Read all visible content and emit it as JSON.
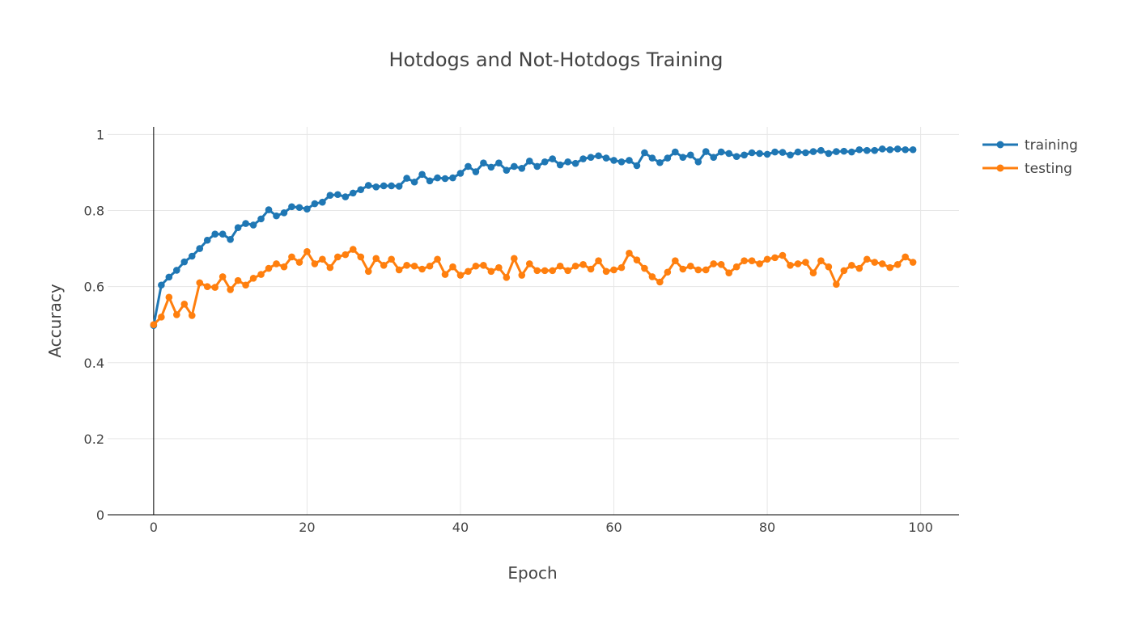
{
  "chart_data": {
    "type": "line",
    "title": "Hotdogs and Not-Hotdogs Training",
    "xlabel": "Epoch",
    "ylabel": "Accuracy",
    "xlim": [
      -6,
      105
    ],
    "ylim": [
      0,
      1.02
    ],
    "x_ticks": [
      0,
      20,
      40,
      60,
      80,
      100
    ],
    "y_ticks": [
      0,
      0.2,
      0.4,
      0.6,
      0.8,
      1
    ],
    "x_tick_labels": [
      "0",
      "20",
      "40",
      "60",
      "80",
      "100"
    ],
    "y_tick_labels": [
      "0",
      "0.2",
      "0.4",
      "0.6",
      "0.8",
      "1"
    ],
    "grid": true,
    "legend_position": "top-right",
    "x": [
      0,
      1,
      2,
      3,
      4,
      5,
      6,
      7,
      8,
      9,
      10,
      11,
      12,
      13,
      14,
      15,
      16,
      17,
      18,
      19,
      20,
      21,
      22,
      23,
      24,
      25,
      26,
      27,
      28,
      29,
      30,
      31,
      32,
      33,
      34,
      35,
      36,
      37,
      38,
      39,
      40,
      41,
      42,
      43,
      44,
      45,
      46,
      47,
      48,
      49,
      50,
      51,
      52,
      53,
      54,
      55,
      56,
      57,
      58,
      59,
      60,
      61,
      62,
      63,
      64,
      65,
      66,
      67,
      68,
      69,
      70,
      71,
      72,
      73,
      74,
      75,
      76,
      77,
      78,
      79,
      80,
      81,
      82,
      83,
      84,
      85,
      86,
      87,
      88,
      89,
      90,
      91,
      92,
      93,
      94,
      95,
      96,
      97,
      98,
      99
    ],
    "series": [
      {
        "name": "training",
        "color": "#1f77b4",
        "values": [
          0.498,
          0.604,
          0.625,
          0.643,
          0.665,
          0.68,
          0.7,
          0.722,
          0.738,
          0.738,
          0.724,
          0.755,
          0.766,
          0.762,
          0.778,
          0.802,
          0.786,
          0.794,
          0.81,
          0.808,
          0.804,
          0.818,
          0.822,
          0.84,
          0.842,
          0.836,
          0.846,
          0.855,
          0.866,
          0.862,
          0.865,
          0.865,
          0.864,
          0.885,
          0.875,
          0.895,
          0.878,
          0.886,
          0.884,
          0.886,
          0.898,
          0.916,
          0.902,
          0.925,
          0.914,
          0.925,
          0.906,
          0.916,
          0.911,
          0.93,
          0.916,
          0.928,
          0.936,
          0.92,
          0.928,
          0.924,
          0.936,
          0.94,
          0.944,
          0.938,
          0.932,
          0.928,
          0.932,
          0.918,
          0.952,
          0.938,
          0.926,
          0.938,
          0.954,
          0.94,
          0.946,
          0.928,
          0.955,
          0.94,
          0.954,
          0.95,
          0.942,
          0.946,
          0.952,
          0.95,
          0.948,
          0.954,
          0.953,
          0.946,
          0.954,
          0.952,
          0.955,
          0.958,
          0.95,
          0.955,
          0.956,
          0.954,
          0.96,
          0.958,
          0.958,
          0.962,
          0.96,
          0.962,
          0.96,
          0.96
        ]
      },
      {
        "name": "testing",
        "color": "#ff7f0e",
        "values": [
          0.5,
          0.52,
          0.572,
          0.526,
          0.554,
          0.524,
          0.61,
          0.6,
          0.598,
          0.626,
          0.592,
          0.616,
          0.604,
          0.622,
          0.632,
          0.648,
          0.66,
          0.652,
          0.678,
          0.664,
          0.692,
          0.66,
          0.672,
          0.65,
          0.678,
          0.684,
          0.698,
          0.678,
          0.64,
          0.674,
          0.656,
          0.672,
          0.644,
          0.656,
          0.654,
          0.646,
          0.654,
          0.672,
          0.632,
          0.652,
          0.63,
          0.64,
          0.654,
          0.656,
          0.64,
          0.65,
          0.624,
          0.674,
          0.63,
          0.66,
          0.642,
          0.642,
          0.642,
          0.654,
          0.642,
          0.654,
          0.658,
          0.646,
          0.668,
          0.64,
          0.644,
          0.65,
          0.688,
          0.67,
          0.648,
          0.626,
          0.612,
          0.638,
          0.668,
          0.646,
          0.654,
          0.644,
          0.644,
          0.66,
          0.658,
          0.636,
          0.652,
          0.668,
          0.668,
          0.66,
          0.672,
          0.676,
          0.682,
          0.656,
          0.66,
          0.664,
          0.636,
          0.668,
          0.652,
          0.606,
          0.642,
          0.656,
          0.648,
          0.672,
          0.664,
          0.66,
          0.65,
          0.658,
          0.678,
          0.664
        ]
      }
    ]
  }
}
